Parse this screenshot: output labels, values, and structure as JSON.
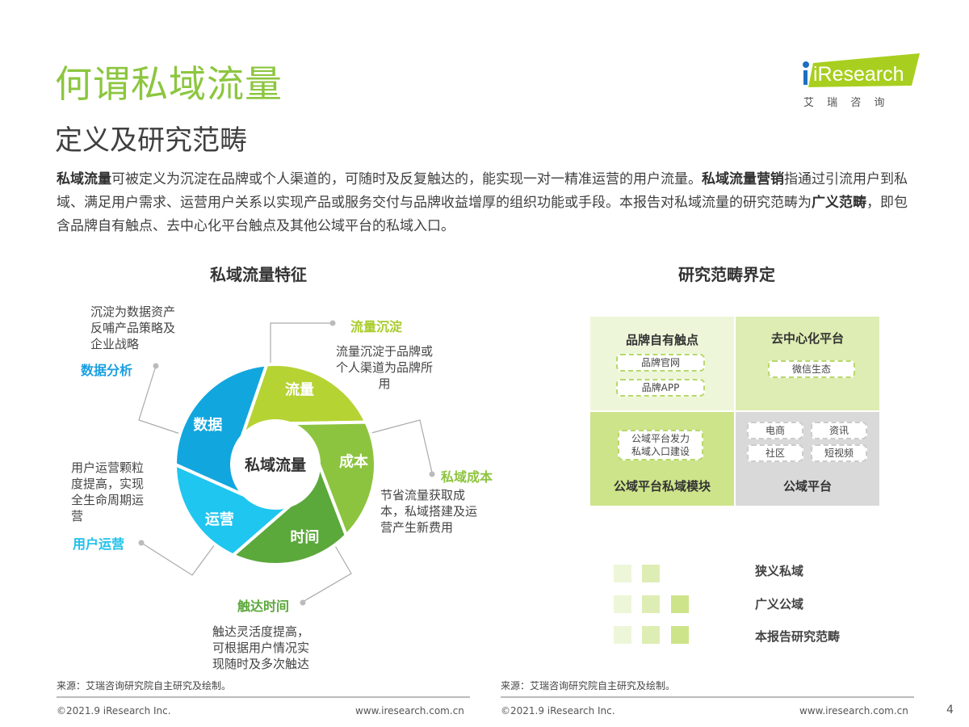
{
  "header": {
    "title": "何谓私域流量",
    "subtitle": "定义及研究范畴"
  },
  "logo": {
    "text": "iResearch",
    "cn": "艾 瑞 咨 询",
    "color": "#a8cf1f"
  },
  "intro": {
    "p1_bold": "私域流量",
    "p1": "可被定义为沉淀在品牌或个人渠道的，可随时及反复触达的，能实现一对一精准运营的用户流量。",
    "p2_bold": "私域流量营销",
    "p2": "指通过引流用户到私域、满足用户需求、运营用户关系以实现产品或服务交付与品牌收益增厚的组织功能或手段。本报告对私域流量的研究范畴为",
    "p3_bold": "广义范畴",
    "p3": "，即包含品牌自有触点、去中心化平台触点及其他公域平台的私域入口。"
  },
  "left": {
    "title": "私域流量特征",
    "center": "私域流量",
    "segments": [
      {
        "label": "流量",
        "color": "#b6d334",
        "callout": "流量沉淀",
        "callout_color": "#a8cc2a",
        "desc": "流量沉淀于品牌或个人渠道为品牌所用"
      },
      {
        "label": "成本",
        "color": "#8dc43f",
        "callout": "私域成本",
        "callout_color": "#8dc43f",
        "desc": "节省流量获取成本，私域搭建及运营产生新费用"
      },
      {
        "label": "时间",
        "color": "#5ba83b",
        "callout": "触达时间",
        "callout_color": "#5ba83b",
        "desc": "触达灵活度提高，可根据用户情况实现随时及多次触达"
      },
      {
        "label": "运营",
        "color": "#1fc6ef",
        "callout": "用户运营",
        "callout_color": "#1fc0ea",
        "desc": "用户运营颗粒度提高，实现全生命周期运营"
      },
      {
        "label": "数据",
        "color": "#12a6df",
        "callout": "数据分析",
        "callout_color": "#1a9fe0",
        "desc": "沉淀为数据资产反哺产品策略及企业战略"
      }
    ],
    "source": "来源：艾瑞咨询研究院自主研究及绘制。"
  },
  "right": {
    "title": "研究范畴界定",
    "cells": [
      {
        "title": "品牌自有触点",
        "items": [
          "品牌官网",
          "品牌APP"
        ],
        "color": "#eef6d9"
      },
      {
        "title": "去中心化平台",
        "items": [
          "微信生态"
        ],
        "color": "#deedb3"
      },
      {
        "title": "公域平台私域模块",
        "items": [
          "公域平台发力\n私域入口建设"
        ],
        "color": "#cde48a"
      },
      {
        "title": "公域平台",
        "items": [
          "电商",
          "资讯",
          "社区",
          "短视频"
        ],
        "color": "#d9d9d9"
      }
    ],
    "legend": [
      "狭义私域",
      "广义公域",
      "本报告研究范畴"
    ],
    "source": "来源：艾瑞咨询研究院自主研究及绘制。"
  },
  "footer": {
    "copyright": "©2021.9 iResearch Inc.",
    "url": "www.iresearch.com.cn",
    "page": "4"
  }
}
